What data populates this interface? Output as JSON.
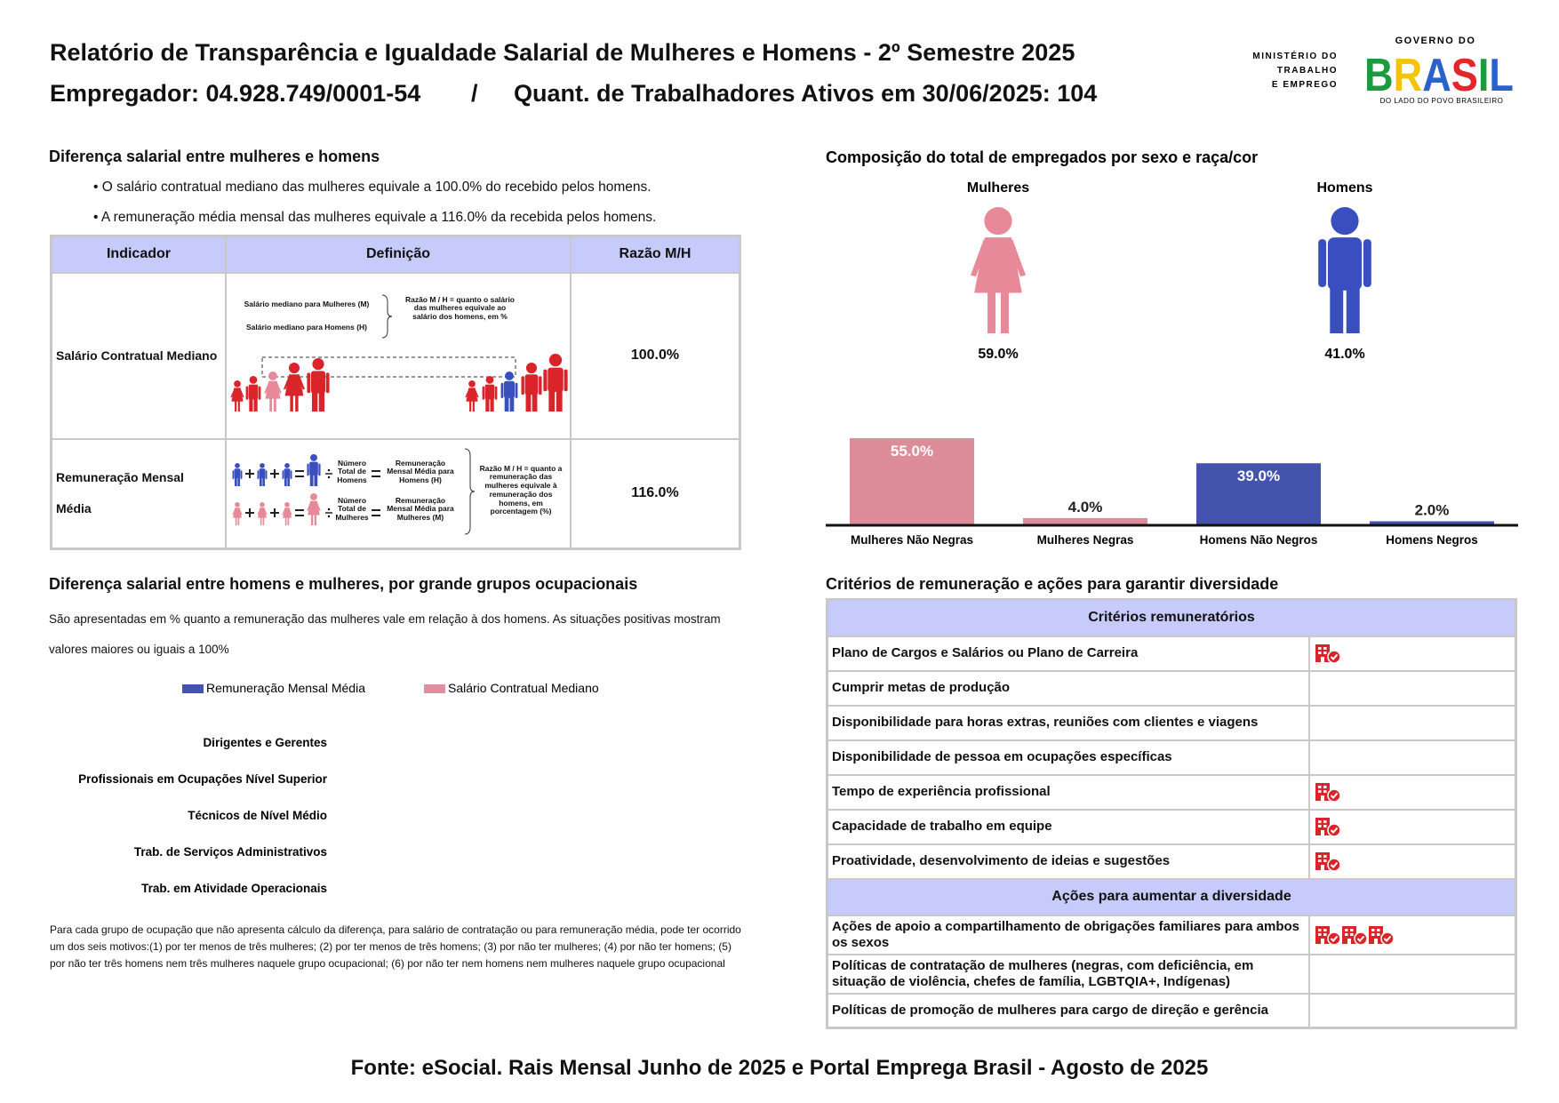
{
  "header": {
    "title": "Relatório de Transparência e Igualdade Salarial de Mulheres e Homens - 2º Semestre 2025",
    "employer": "Empregador: 04.928.749/0001-54",
    "separator": "/",
    "workers": "Quant. de Trabalhadores Ativos em 30/06/2025: 104"
  },
  "logos": {
    "ministry": [
      "MINISTÉRIO DO",
      "TRABALHO",
      "E EMPREGO"
    ],
    "government_top": "GOVERNO DO",
    "government_main": "BRASIL",
    "government_tagline": "DO LADO DO POVO BRASILEIRO"
  },
  "salary_gap": {
    "title": "Diferença salarial entre mulheres e homens",
    "bullets": [
      "• O salário contratual mediano das mulheres equivale a 100.0% do recebido pelos homens.",
      "• A remuneração média mensal das mulheres equivale a 116.0% da recebida pelos homens."
    ],
    "table": {
      "headers": [
        "Indicador",
        "Definição",
        "Razão M/H"
      ],
      "rows": [
        {
          "indicator": "Salário Contratual Mediano",
          "ratio": "100.0%",
          "diagram": {
            "median_women": "Salário mediano para Mulheres (M)",
            "median_men": "Salário mediano para Homens (H)",
            "ratio_note": "Razão M / H = quanto o salário das mulheres equivale ao salário dos homens, em %"
          }
        },
        {
          "indicator": "Remuneração Mensal Média",
          "ratio": "116.0%",
          "diagram": {
            "total_men": "Número Total de Homens",
            "avg_men": "Remuneração Mensal Média para Homens (H)",
            "total_women": "Número Total de Mulheres",
            "avg_women": "Remuneração Mensal Média para Mulheres (M)",
            "ratio_note": "Razão M / H = quanto a remuneração das mulheres equivale à remuneração dos homens, em porcentagem (%)"
          }
        }
      ]
    }
  },
  "chart_data": [
    {
      "type": "pictogram",
      "title": "Composição do total de empregados por sexo e raça/cor",
      "categories": [
        "Mulheres",
        "Homens"
      ],
      "values": [
        59.0,
        41.0
      ],
      "value_labels": [
        "59.0%",
        "41.0%"
      ],
      "colors": [
        "#e8899a",
        "#3a4fbf"
      ]
    },
    {
      "type": "bar",
      "categories": [
        "Mulheres Não Negras",
        "Mulheres Negras",
        "Homens Não Negros",
        "Homens Negros"
      ],
      "values": [
        55.0,
        4.0,
        39.0,
        2.0
      ],
      "value_labels": [
        "55.0%",
        "4.0%",
        "39.0%",
        "2.0%"
      ],
      "colors": [
        "#dd8d9a",
        "#dd8d9a",
        "#4453ad",
        "#4453ad"
      ]
    },
    {
      "type": "hbar",
      "title": "Diferença salarial entre homens e mulheres, por grande grupos ocupacionais",
      "subtitle": "São apresentadas em % quanto a remuneração das mulheres vale em relação à dos homens. As situações positivas mostram valores maiores ou iguais a 100%",
      "categories": [
        "Dirigentes e Gerentes",
        "Profissionais em Ocupações Nível Superior",
        "Técnicos de Nível Médio",
        "Trab. de Serviços Administrativos",
        "Trab. em Atividade Operacionais"
      ],
      "series": [
        {
          "name": "Remuneração Mensal Média",
          "color": "#4453ad",
          "values": [
            null,
            null,
            null,
            null,
            null
          ]
        },
        {
          "name": "Salário Contratual Mediano",
          "color": "#e08fa0",
          "values": [
            null,
            null,
            null,
            null,
            null
          ]
        }
      ],
      "note": "Para cada grupo de ocupação que não apresenta cálculo da diferença, para salário de contratação ou para remuneração média, pode ter ocorrido um dos seis motivos:(1) por ter menos de três mulheres; (2) por ter menos de três homens; (3) por não ter mulheres; (4) por não ter homens; (5) por não ter três homens nem três mulheres naquele grupo ocupacional; (6) por não ter nem homens nem mulheres naquele grupo ocupacional"
    }
  ],
  "criteria": {
    "title": "Critérios de remuneração e ações para garantir diversidade",
    "sections": [
      {
        "header": "Critérios remuneratórios",
        "rows": [
          {
            "label": "Plano de Cargos e Salários ou Plano de Carreira",
            "icons": 1
          },
          {
            "label": "Cumprir metas de produção",
            "icons": 0
          },
          {
            "label": "Disponibilidade para horas extras, reuniões com clientes e viagens",
            "icons": 0
          },
          {
            "label": "Disponibilidade de pessoa em ocupações específicas",
            "icons": 0
          },
          {
            "label": "Tempo de experiência profissional",
            "icons": 1
          },
          {
            "label": "Capacidade de trabalho em equipe",
            "icons": 1
          },
          {
            "label": "Proatividade, desenvolvimento de ideias e sugestões",
            "icons": 1
          }
        ]
      },
      {
        "header": "Ações para aumentar a diversidade",
        "rows": [
          {
            "label": "Ações de apoio a compartilhamento de obrigações familiares para ambos os sexos",
            "icons": 3
          },
          {
            "label": "Políticas de contratação de mulheres (negras, com deficiência, em situação de violência, chefes de família, LGBTQIA+, Indígenas)",
            "icons": 0
          },
          {
            "label": "Políticas de promoção de mulheres para cargo de direção e gerência",
            "icons": 0
          }
        ]
      }
    ]
  },
  "footer": "Fonte: eSocial. Rais Mensal Junho de 2025 e Portal Emprega Brasil - Agosto de 2025"
}
